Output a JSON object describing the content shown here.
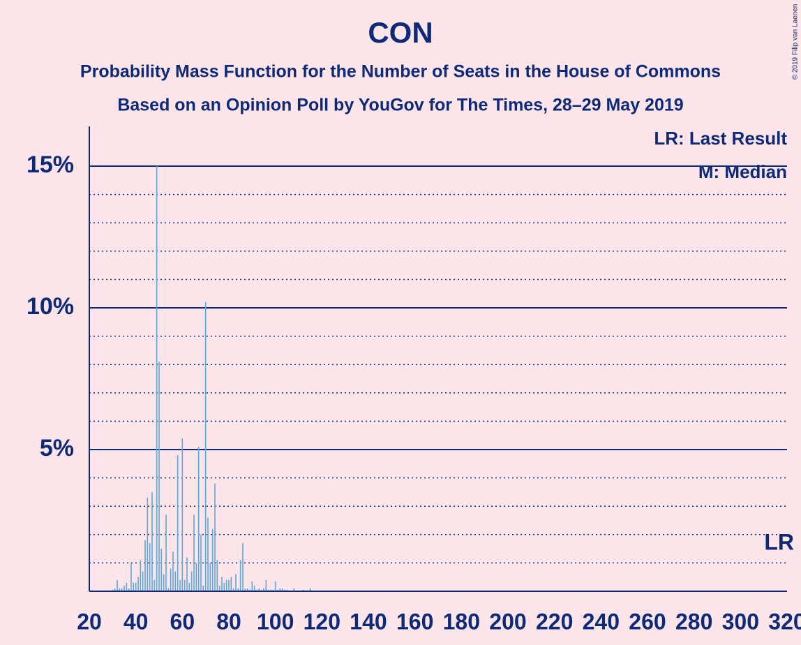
{
  "chart_data": {
    "type": "bar",
    "title": "CON",
    "subtitle": "Probability Mass Function for the Number of Seats in the House of Commons",
    "subtitle2": "Based on an Opinion Poll by YouGov for The Times, 28–29 May 2019",
    "copyright": "© 2019 Filip van Laenen",
    "legend_lr": "LR: Last Result",
    "legend_median": "M: Median",
    "lr_label": "LR",
    "color": "#5aa9dc",
    "x": [
      30,
      31,
      32,
      33,
      34,
      35,
      36,
      37,
      38,
      39,
      40,
      41,
      42,
      43,
      44,
      45,
      46,
      47,
      48,
      49,
      50,
      51,
      52,
      53,
      54,
      55,
      56,
      57,
      58,
      59,
      60,
      61,
      62,
      63,
      64,
      65,
      66,
      67,
      68,
      69,
      70,
      71,
      72,
      73,
      74,
      75,
      76,
      77,
      78,
      79,
      80,
      81,
      82,
      83,
      84,
      85,
      86,
      87,
      88,
      89,
      90,
      91,
      92,
      93,
      94,
      95,
      96,
      97,
      98,
      99,
      100,
      101,
      102,
      103,
      104,
      105,
      106,
      107,
      108,
      109,
      110,
      111,
      112,
      113,
      114,
      115,
      116,
      117,
      118,
      119,
      120
    ],
    "values": [
      0.05,
      0.1,
      0.4,
      0.1,
      0.1,
      0.2,
      0.3,
      0.1,
      1.0,
      0.3,
      0.3,
      0.5,
      1.1,
      0.7,
      1.8,
      3.3,
      1.7,
      3.5,
      0.4,
      15.0,
      8.1,
      1.5,
      0.6,
      2.7,
      0.1,
      0.8,
      1.4,
      0.7,
      4.8,
      0.4,
      5.4,
      0.4,
      1.2,
      0.3,
      0.7,
      2.7,
      1.0,
      5.1,
      2.0,
      0.2,
      10.2,
      2.6,
      1.0,
      2.2,
      3.8,
      1.1,
      0.2,
      0.5,
      0.3,
      0.4,
      0.4,
      0.5,
      0.1,
      0.6,
      0.1,
      1.1,
      1.7,
      0.1,
      0.1,
      0.05,
      0.35,
      0.2,
      0.05,
      0.1,
      0.05,
      0.1,
      0.4,
      0.05,
      0.05,
      0.05,
      0.35,
      0.05,
      0.1,
      0.1,
      0.05,
      0.05,
      0.02,
      0.02,
      0.1,
      0.02,
      0.02,
      0.02,
      0.05,
      0.02,
      0.02,
      0.1,
      0.02,
      0.02,
      0.02,
      0.02,
      0.02
    ],
    "xlim": [
      20,
      320
    ],
    "xticks": [
      20,
      40,
      60,
      80,
      100,
      120,
      140,
      160,
      180,
      200,
      220,
      240,
      260,
      280,
      300,
      320
    ],
    "ylim": [
      0,
      16.4
    ],
    "yticks": [
      {
        "value": 5,
        "label": "5%"
      },
      {
        "value": 10,
        "label": "10%"
      },
      {
        "value": 15,
        "label": "15%"
      }
    ],
    "minor_yticks": [
      1,
      2,
      3,
      4,
      6,
      7,
      8,
      9,
      11,
      12,
      13,
      14
    ],
    "grid": true
  }
}
